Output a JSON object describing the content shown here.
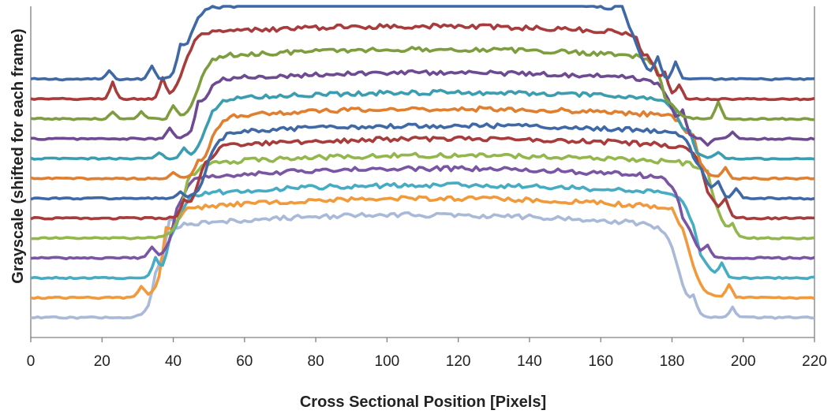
{
  "chart_data": {
    "type": "line",
    "title": "",
    "xlabel": "Cross Sectional Position [Pixels]",
    "ylabel": "Grayscale (shifted for each frame)",
    "xlim": [
      0,
      220
    ],
    "xticks": [
      0,
      20,
      40,
      60,
      80,
      100,
      120,
      140,
      160,
      180,
      200,
      220
    ],
    "ylim": [
      0,
      1
    ],
    "grid": false,
    "legend": "none",
    "x_step": 1,
    "series": [
      {
        "color": "#3f69a6",
        "offset": 0.78,
        "edges": [
          44,
          170
        ],
        "height": 0.24,
        "bumps": [
          [
            22,
            0.025
          ],
          [
            34,
            0.04
          ],
          [
            42,
            0.06
          ],
          [
            165,
            0.05
          ],
          [
            176,
            0.06
          ],
          [
            181,
            0.05
          ]
        ],
        "dip_right": 0.0
      },
      {
        "color": "#a83b3b",
        "offset": 0.72,
        "edges": [
          43,
          175
        ],
        "height": 0.22,
        "bumps": [
          [
            23,
            0.05
          ],
          [
            37,
            0.06
          ],
          [
            172,
            -0.04
          ],
          [
            178,
            0.05
          ],
          [
            182,
            0.04
          ]
        ],
        "dip_right": 0.0
      },
      {
        "color": "#7d9d3f",
        "offset": 0.66,
        "edges": [
          47,
          178
        ],
        "height": 0.21,
        "bumps": [
          [
            23,
            0.02
          ],
          [
            31,
            0.02
          ],
          [
            40,
            0.04
          ],
          [
            178,
            -0.03
          ],
          [
            193,
            0.05
          ]
        ],
        "dip_right": 0.0
      },
      {
        "color": "#6e4a93",
        "offset": 0.6,
        "edges": [
          48,
          180
        ],
        "height": 0.2,
        "bumps": [
          [
            39,
            0.03
          ],
          [
            47,
            0.05
          ],
          [
            183,
            0.06
          ],
          [
            190,
            -0.02
          ],
          [
            197,
            0.02
          ]
        ],
        "dip_right": 0.0
      },
      {
        "color": "#3b9db0",
        "offset": 0.54,
        "edges": [
          49,
          183
        ],
        "height": 0.2,
        "bumps": [
          [
            36,
            0.02
          ],
          [
            43,
            0.03
          ],
          [
            185,
            0.04
          ],
          [
            193,
            0.02
          ]
        ],
        "dip_right": 0.0
      },
      {
        "color": "#e07f2f",
        "offset": 0.48,
        "edges": [
          50,
          186
        ],
        "height": 0.21,
        "bumps": [
          [
            40,
            0.02
          ],
          [
            47,
            0.03
          ],
          [
            186,
            0.04
          ],
          [
            195,
            0.03
          ]
        ],
        "dip_right": 0.0
      },
      {
        "color": "#3f69a6",
        "offset": 0.42,
        "edges": [
          50,
          188
        ],
        "height": 0.22,
        "bumps": [
          [
            42,
            0.02
          ],
          [
            50,
            0.02
          ],
          [
            186,
            -0.03
          ],
          [
            193,
            0.04
          ],
          [
            198,
            0.03
          ]
        ],
        "dip_right": 0.0
      },
      {
        "color": "#a83b3b",
        "offset": 0.36,
        "edges": [
          47,
          190
        ],
        "height": 0.24,
        "bumps": [
          [
            43,
            0.04
          ],
          [
            51,
            -0.02
          ],
          [
            190,
            -0.03
          ],
          [
            195,
            0.05
          ]
        ],
        "dip_right": 0.0
      },
      {
        "color": "#93b74c",
        "offset": 0.3,
        "edges": [
          43,
          192
        ],
        "height": 0.25,
        "bumps": [
          [
            44,
            0.03
          ],
          [
            190,
            0.03
          ],
          [
            197,
            0.03
          ]
        ],
        "dip_right": 0.0
      },
      {
        "color": "#7a55a3",
        "offset": 0.24,
        "edges": [
          41,
          184
        ],
        "height": 0.27,
        "bumps": [
          [
            34,
            0.03
          ],
          [
            41,
            0.03
          ],
          [
            183,
            -0.03
          ],
          [
            190,
            0.03
          ]
        ],
        "dip_right": 0.0
      },
      {
        "color": "#45acc4",
        "offset": 0.18,
        "edges": [
          40,
          187
        ],
        "height": 0.28,
        "bumps": [
          [
            35,
            0.05
          ],
          [
            39,
            0.03
          ],
          [
            188,
            -0.02
          ],
          [
            194,
            0.04
          ]
        ],
        "dip_right": 0.0
      },
      {
        "color": "#f19a3c",
        "offset": 0.12,
        "edges": [
          38,
          185
        ],
        "height": 0.3,
        "bumps": [
          [
            31,
            0.03
          ],
          [
            38,
            0.08
          ],
          [
            180,
            0.02
          ],
          [
            196,
            0.04
          ]
        ],
        "dip_right": 0.0
      },
      {
        "color": "#a9bad8",
        "offset": 0.06,
        "edges": [
          36,
          182
        ],
        "height": 0.31,
        "bumps": [
          [
            35,
            0.04
          ],
          [
            39,
            0.06
          ],
          [
            186,
            0.04
          ],
          [
            197,
            0.03
          ]
        ],
        "dip_right": 0.0
      }
    ]
  }
}
